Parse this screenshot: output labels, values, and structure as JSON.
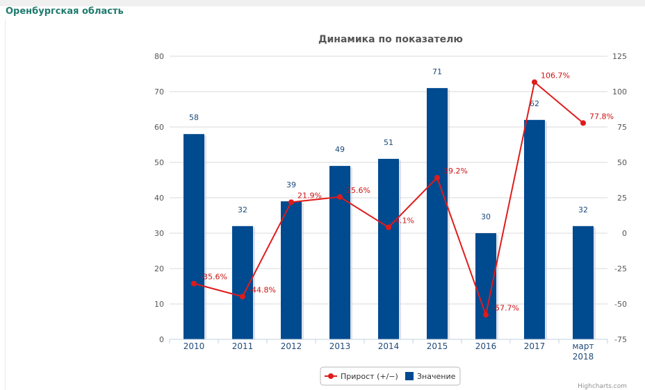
{
  "page": {
    "region_title": "Оренбургская область",
    "credit": "Highcharts.com"
  },
  "colors": {
    "bar": "#004a8f",
    "line": "#e01b1b",
    "bar_label": "#1a4a7a",
    "line_label": "#cc1111",
    "title": "#555555",
    "grid": "#d8d8d8",
    "axis_text": "#555555"
  },
  "chart_data": {
    "type": "bar",
    "title": "Динамика по показателю",
    "categories": [
      "2010",
      "2011",
      "2012",
      "2013",
      "2014",
      "2015",
      "2016",
      "2017",
      "март 2018"
    ],
    "y_left": {
      "min": 0,
      "max": 80,
      "ticks": [
        "0",
        "10",
        "20",
        "30",
        "40",
        "50",
        "60",
        "70",
        "80"
      ]
    },
    "y_right": {
      "min": -75,
      "max": 125,
      "ticks": [
        "-75",
        "-50",
        "-25",
        "0",
        "25",
        "50",
        "75",
        "100",
        "125"
      ]
    },
    "grid": true,
    "legend_position": "bottom-center",
    "series": [
      {
        "name": "Значение",
        "type": "bar",
        "axis": "left",
        "values": [
          58,
          32,
          39,
          49,
          51,
          71,
          30,
          62,
          32
        ],
        "labels": [
          "58",
          "32",
          "39",
          "49",
          "51",
          "71",
          "30",
          "62",
          "32"
        ]
      },
      {
        "name": "Прирост (+/−)",
        "type": "line",
        "axis": "right",
        "values": [
          -35.6,
          -44.8,
          21.9,
          25.6,
          4.1,
          39.2,
          -57.7,
          106.7,
          77.8
        ],
        "labels": [
          "-35.6%",
          "-44.8%",
          "21.9%",
          "25.6%",
          "4.1%",
          "39.2%",
          "-57.7%",
          "106.7%",
          "77.8%"
        ]
      }
    ],
    "legend": [
      "Прирост (+/−)",
      "Значение"
    ]
  }
}
